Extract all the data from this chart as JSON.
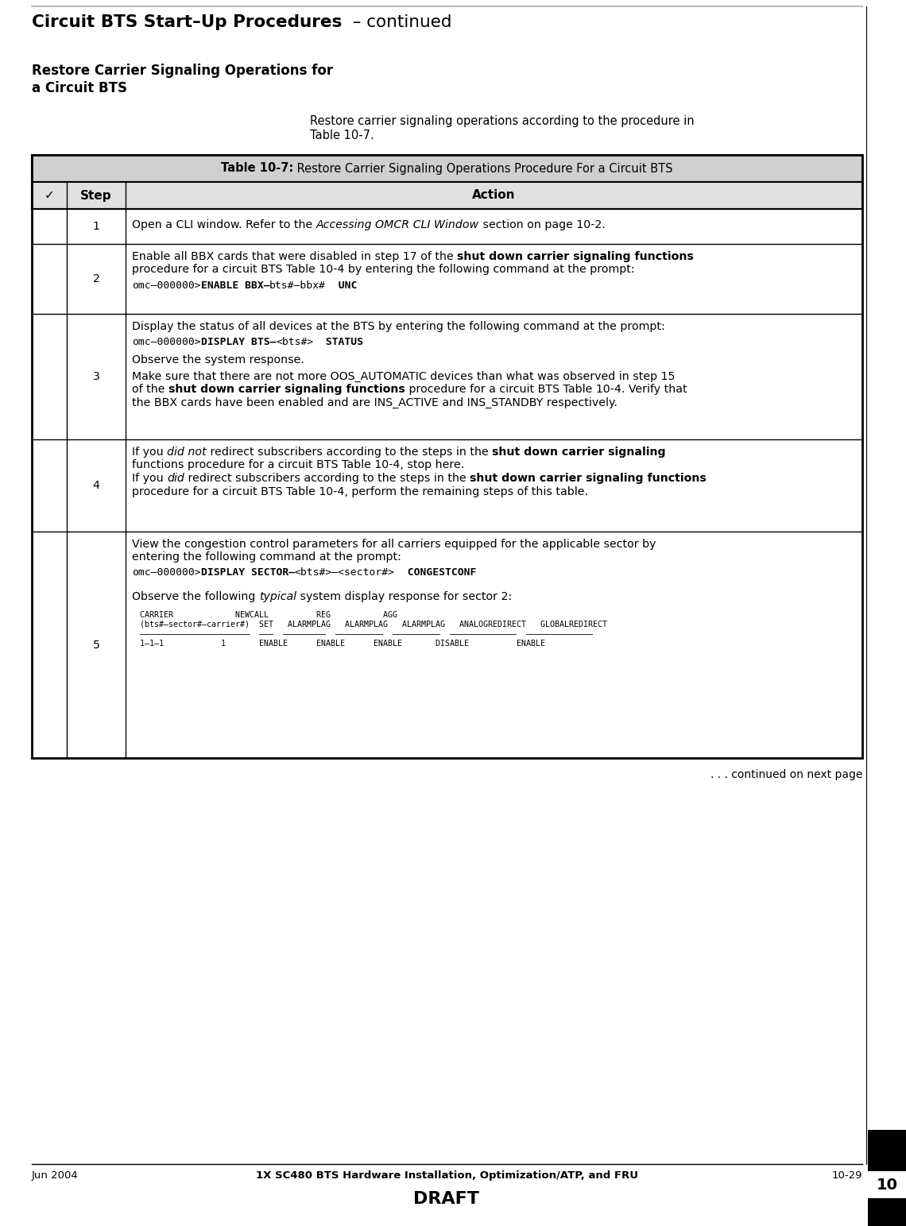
{
  "page_title_bold": "Circuit BTS Start–Up Procedures",
  "page_title_normal": "  – continued",
  "section_heading_line1": "Restore Carrier Signaling Operations for",
  "section_heading_line2": "a Circuit BTS",
  "intro_text_line1": "Restore carrier signaling operations according to the procedure in",
  "intro_text_line2": "Table 10-7.",
  "table_title_bold": "Table 10-7:",
  "table_title_normal": " Restore Carrier Signaling Operations Procedure For a Circuit BTS",
  "footer_left": "Jun 2004",
  "footer_center": "1X SC480 BTS Hardware Installation, Optimization/ATP, and FRU",
  "footer_right": "10-29",
  "footer_draft": "DRAFT",
  "chapter_num": "10",
  "bg_color": "#ffffff",
  "top_rule_color": "#999999",
  "black": "#000000"
}
